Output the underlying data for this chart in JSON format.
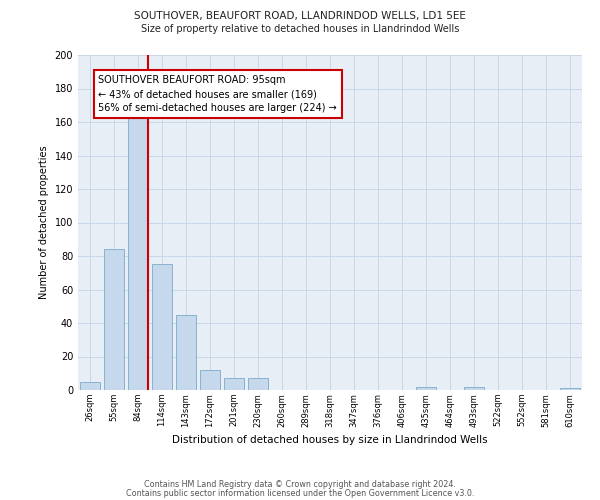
{
  "title1": "SOUTHOVER, BEAUFORT ROAD, LLANDRINDOD WELLS, LD1 5EE",
  "title2": "Size of property relative to detached houses in Llandrindod Wells",
  "xlabel": "Distribution of detached houses by size in Llandrindod Wells",
  "ylabel": "Number of detached properties",
  "categories": [
    "26sqm",
    "55sqm",
    "84sqm",
    "114sqm",
    "143sqm",
    "172sqm",
    "201sqm",
    "230sqm",
    "260sqm",
    "289sqm",
    "318sqm",
    "347sqm",
    "376sqm",
    "406sqm",
    "435sqm",
    "464sqm",
    "493sqm",
    "522sqm",
    "552sqm",
    "581sqm",
    "610sqm"
  ],
  "values": [
    5,
    84,
    165,
    75,
    45,
    12,
    7,
    7,
    0,
    0,
    0,
    0,
    0,
    0,
    2,
    0,
    2,
    0,
    0,
    0,
    1
  ],
  "bar_color": "#c5d8ec",
  "bar_edge_color": "#7aaac8",
  "red_line_x": 2.5,
  "annotation_text": "SOUTHOVER BEAUFORT ROAD: 95sqm\n← 43% of detached houses are smaller (169)\n56% of semi-detached houses are larger (224) →",
  "annotation_box_color": "#ffffff",
  "annotation_box_edge": "#cc0000",
  "red_line_color": "#cc0000",
  "grid_color": "#c8d8e8",
  "background_color": "#e8eef5",
  "footer1": "Contains HM Land Registry data © Crown copyright and database right 2024.",
  "footer2": "Contains public sector information licensed under the Open Government Licence v3.0.",
  "ylim": [
    0,
    200
  ],
  "yticks": [
    0,
    20,
    40,
    60,
    80,
    100,
    120,
    140,
    160,
    180,
    200
  ]
}
